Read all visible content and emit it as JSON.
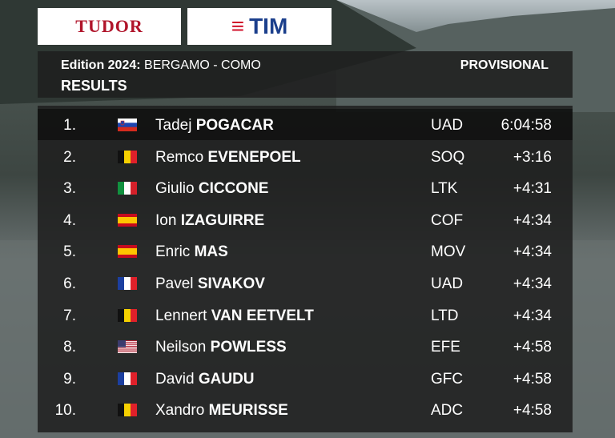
{
  "sponsors": [
    "TUDOR",
    "TIM"
  ],
  "header": {
    "edition": "Edition 2024:",
    "race": "BERGAMO - COMO",
    "status": "PROVISIONAL",
    "title": "RESULTS"
  },
  "rows": [
    {
      "rank": "1.",
      "first": "Tadej",
      "last": "POGACAR",
      "team": "UAD",
      "time": "6:04:58"
    },
    {
      "rank": "2.",
      "first": "Remco",
      "last": "EVENEPOEL",
      "team": "SOQ",
      "time": "+3:16"
    },
    {
      "rank": "3.",
      "first": "Giulio",
      "last": "CICCONE",
      "team": "LTK",
      "time": "+4:31"
    },
    {
      "rank": "4.",
      "first": "Ion",
      "last": "IZAGUIRRE",
      "team": "COF",
      "time": "+4:34"
    },
    {
      "rank": "5.",
      "first": "Enric",
      "last": "MAS",
      "team": "MOV",
      "time": "+4:34"
    },
    {
      "rank": "6.",
      "first": "Pavel",
      "last": "SIVAKOV",
      "team": "UAD",
      "time": "+4:34"
    },
    {
      "rank": "7.",
      "first": "Lennert",
      "last": "VAN EETVELT",
      "team": "LTD",
      "time": "+4:34"
    },
    {
      "rank": "8.",
      "first": "Neilson",
      "last": "POWLESS",
      "team": "EFE",
      "time": "+4:58"
    },
    {
      "rank": "9.",
      "first": "David",
      "last": "GAUDU",
      "team": "GFC",
      "time": "+4:58"
    },
    {
      "rank": "10.",
      "first": "Xandro",
      "last": "MEURISSE",
      "team": "ADC",
      "time": "+4:58"
    }
  ]
}
